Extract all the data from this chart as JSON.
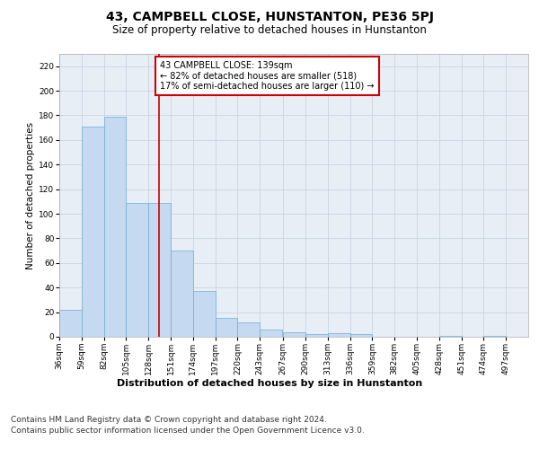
{
  "title": "43, CAMPBELL CLOSE, HUNSTANTON, PE36 5PJ",
  "subtitle": "Size of property relative to detached houses in Hunstanton",
  "xlabel_bottom": "Distribution of detached houses by size in Hunstanton",
  "ylabel": "Number of detached properties",
  "footer1": "Contains HM Land Registry data © Crown copyright and database right 2024.",
  "footer2": "Contains public sector information licensed under the Open Government Licence v3.0.",
  "annotation_line1": "43 CAMPBELL CLOSE: 139sqm",
  "annotation_line2": "← 82% of detached houses are smaller (518)",
  "annotation_line3": "17% of semi-detached houses are larger (110) →",
  "property_size": 139,
  "categories": [
    "36sqm",
    "59sqm",
    "82sqm",
    "105sqm",
    "128sqm",
    "151sqm",
    "174sqm",
    "197sqm",
    "220sqm",
    "243sqm",
    "267sqm",
    "290sqm",
    "313sqm",
    "336sqm",
    "359sqm",
    "382sqm",
    "405sqm",
    "428sqm",
    "451sqm",
    "474sqm",
    "497sqm"
  ],
  "bin_starts": [
    36,
    59,
    82,
    105,
    128,
    151,
    174,
    197,
    220,
    243,
    267,
    290,
    313,
    336,
    359,
    382,
    405,
    428,
    451,
    474,
    497
  ],
  "bin_width": 23,
  "values": [
    22,
    171,
    179,
    109,
    109,
    70,
    37,
    15,
    12,
    6,
    4,
    2,
    3,
    2,
    0,
    0,
    0,
    1,
    0,
    1,
    0
  ],
  "bar_color": "#c5d9f0",
  "bar_edge_color": "#6baed6",
  "vline_color": "#cc0000",
  "annotation_box_edge_color": "#cc0000",
  "annotation_text_color": "#000000",
  "background_color": "#ffffff",
  "plot_bg_color": "#e8eef5",
  "grid_color": "#c8d4e4",
  "ylim": [
    0,
    230
  ],
  "yticks": [
    0,
    20,
    40,
    60,
    80,
    100,
    120,
    140,
    160,
    180,
    200,
    220
  ],
  "title_fontsize": 10,
  "subtitle_fontsize": 8.5,
  "axis_label_fontsize": 7.5,
  "tick_fontsize": 6.5,
  "annotation_fontsize": 7,
  "footer_fontsize": 6.5,
  "xlabel_fontsize": 8
}
